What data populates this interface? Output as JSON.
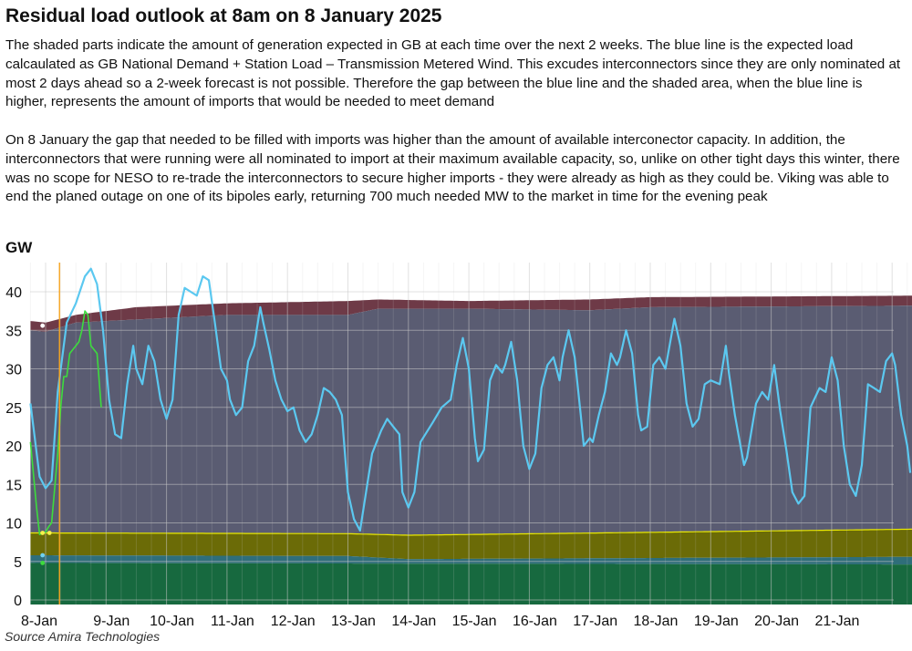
{
  "title": "Residual load outlook at 8am on 8 January 2025",
  "paragraph1": "The shaded parts indicate the amount of generation expected in GB at each time over the next 2 weeks. The blue line is the expected load calcaulated as GB National Demand + Station Load – Transmission Metered Wind. This excudes interconnectors since they are only nominated at most 2 days ahead so a 2-week forecast is not possible. Therefore the gap between the blue line and the shaded area, when the blue line is higher, represents the amount of imports that would be needed to meet demand",
  "paragraph2": "On 8 January the gap that needed to be filled with imports was higher than the amount of available interconector capacity. In addition, the interconnectors that were running were all nominated to import at their maximum available capacity, so, unlike on other tight days this winter, there was no scope for NESO to re-trade the interconnectors to secure higher imports - they were already as high as they could be. Viking was able to end the planed outage on one of its bipoles early, returning 700 much needed MW to the market in time for the evening peak",
  "source": "Source Amira Technologies",
  "colors": {
    "blue_line": "#5bc8f0",
    "green_line": "#3ddc3d",
    "band_green": "#17693f",
    "band_teal": "#2f6e7a",
    "band_olive": "#6b6b07",
    "band_olive_edge": "#e8e800",
    "band_grey": "#5a5c72",
    "band_maroon": "#6e3a47",
    "orange_marker": "#f5a623"
  },
  "chart_data": {
    "type": "area",
    "ylabel": "GW",
    "ylim": [
      0,
      42
    ],
    "y_ticks": [
      "0",
      "5",
      "10",
      "15",
      "20",
      "25",
      "30",
      "35",
      "40"
    ],
    "x_ticks": [
      "8-Jan",
      "9-Jan",
      "10-Jan",
      "11-Jan",
      "12-Jan",
      "13-Jan",
      "14-Jan",
      "15-Jan",
      "16-Jan",
      "17-Jan",
      "18-Jan",
      "19-Jan",
      "20-Jan",
      "21-Jan"
    ],
    "x_range_days": [
      -0.25,
      14.5
    ],
    "grid": true,
    "stacked_bands_top_gw": {
      "green": [
        [
          -0.25,
          4.8
        ],
        [
          14.5,
          4.6
        ]
      ],
      "teal": [
        [
          -0.25,
          5.8
        ],
        [
          5.0,
          5.7
        ],
        [
          6.0,
          5.3
        ],
        [
          14.5,
          5.6
        ]
      ],
      "olive": [
        [
          -0.25,
          8.7
        ],
        [
          5.0,
          8.6
        ],
        [
          6.0,
          8.4
        ],
        [
          14.5,
          9.2
        ]
      ],
      "grey": [
        [
          -0.25,
          35.0
        ],
        [
          0.0,
          34.8
        ],
        [
          0.5,
          36.0
        ],
        [
          3.0,
          37.0
        ],
        [
          5.0,
          37.0
        ],
        [
          5.5,
          37.8
        ],
        [
          7.0,
          37.8
        ],
        [
          9.0,
          37.6
        ],
        [
          10.0,
          38.0
        ],
        [
          14.5,
          38.2
        ]
      ],
      "maroon": [
        [
          -0.25,
          36.2
        ],
        [
          0.0,
          36.0
        ],
        [
          0.5,
          37.0
        ],
        [
          1.5,
          38.0
        ],
        [
          3.0,
          38.5
        ],
        [
          5.0,
          38.8
        ],
        [
          5.5,
          39.0
        ],
        [
          7.0,
          38.8
        ],
        [
          9.0,
          39.0
        ],
        [
          10.0,
          39.3
        ],
        [
          14.5,
          39.5
        ]
      ]
    },
    "series": [
      {
        "name": "",
        "color": "blue",
        "points": [
          [
            -0.25,
            25.5
          ],
          [
            -0.1,
            16.0
          ],
          [
            0.0,
            14.5
          ],
          [
            0.1,
            15.5
          ],
          [
            0.2,
            27.0
          ],
          [
            0.35,
            36.0
          ],
          [
            0.5,
            38.5
          ],
          [
            0.65,
            42.0
          ],
          [
            0.75,
            43.0
          ],
          [
            0.85,
            41.0
          ],
          [
            0.95,
            35.0
          ],
          [
            1.05,
            26.0
          ],
          [
            1.15,
            21.5
          ],
          [
            1.25,
            21.0
          ],
          [
            1.35,
            28.0
          ],
          [
            1.45,
            33.0
          ],
          [
            1.5,
            30.0
          ],
          [
            1.6,
            28.0
          ],
          [
            1.7,
            33.0
          ],
          [
            1.8,
            31.0
          ],
          [
            1.9,
            26.0
          ],
          [
            2.0,
            23.5
          ],
          [
            2.1,
            26.0
          ],
          [
            2.2,
            37.0
          ],
          [
            2.3,
            40.5
          ],
          [
            2.4,
            40.0
          ],
          [
            2.5,
            39.5
          ],
          [
            2.6,
            42.0
          ],
          [
            2.7,
            41.5
          ],
          [
            2.8,
            36.0
          ],
          [
            2.9,
            30.0
          ],
          [
            3.0,
            28.5
          ],
          [
            3.05,
            26.0
          ],
          [
            3.15,
            24.0
          ],
          [
            3.25,
            25.0
          ],
          [
            3.35,
            31.0
          ],
          [
            3.45,
            33.0
          ],
          [
            3.55,
            38.0
          ],
          [
            3.6,
            36.0
          ],
          [
            3.7,
            32.5
          ],
          [
            3.8,
            28.5
          ],
          [
            3.9,
            26.0
          ],
          [
            4.0,
            24.5
          ],
          [
            4.1,
            25.0
          ],
          [
            4.2,
            22.0
          ],
          [
            4.3,
            20.5
          ],
          [
            4.4,
            21.5
          ],
          [
            4.5,
            24.0
          ],
          [
            4.6,
            27.5
          ],
          [
            4.7,
            27.0
          ],
          [
            4.8,
            26.0
          ],
          [
            4.9,
            24.0
          ],
          [
            5.0,
            14.0
          ],
          [
            5.1,
            10.5
          ],
          [
            5.2,
            9.0
          ],
          [
            5.3,
            14.0
          ],
          [
            5.4,
            19.0
          ],
          [
            5.55,
            22.0
          ],
          [
            5.65,
            23.5
          ],
          [
            5.75,
            22.5
          ],
          [
            5.85,
            21.5
          ],
          [
            5.9,
            14.0
          ],
          [
            6.0,
            12.0
          ],
          [
            6.1,
            14.0
          ],
          [
            6.2,
            20.5
          ],
          [
            6.4,
            23.0
          ],
          [
            6.55,
            25.0
          ],
          [
            6.7,
            26.0
          ],
          [
            6.8,
            30.5
          ],
          [
            6.9,
            34.0
          ],
          [
            7.0,
            30.0
          ],
          [
            7.1,
            21.0
          ],
          [
            7.15,
            18.0
          ],
          [
            7.25,
            19.5
          ],
          [
            7.35,
            28.5
          ],
          [
            7.45,
            30.5
          ],
          [
            7.55,
            29.5
          ],
          [
            7.6,
            30.5
          ],
          [
            7.7,
            33.5
          ],
          [
            7.8,
            28.5
          ],
          [
            7.9,
            20.0
          ],
          [
            8.0,
            17.0
          ],
          [
            8.1,
            19.0
          ],
          [
            8.2,
            27.5
          ],
          [
            8.3,
            30.5
          ],
          [
            8.4,
            31.5
          ],
          [
            8.5,
            28.5
          ],
          [
            8.55,
            31.5
          ],
          [
            8.65,
            35.0
          ],
          [
            8.75,
            31.5
          ],
          [
            8.85,
            24.0
          ],
          [
            8.9,
            20.0
          ],
          [
            9.0,
            21.0
          ],
          [
            9.05,
            20.5
          ],
          [
            9.15,
            24.0
          ],
          [
            9.25,
            27.0
          ],
          [
            9.35,
            32.0
          ],
          [
            9.45,
            30.5
          ],
          [
            9.5,
            31.5
          ],
          [
            9.6,
            35.0
          ],
          [
            9.7,
            32.0
          ],
          [
            9.8,
            24.0
          ],
          [
            9.85,
            22.0
          ],
          [
            9.95,
            22.5
          ],
          [
            10.05,
            30.5
          ],
          [
            10.15,
            31.5
          ],
          [
            10.25,
            30.0
          ],
          [
            10.4,
            36.5
          ],
          [
            10.5,
            33.0
          ],
          [
            10.6,
            25.5
          ],
          [
            10.7,
            22.5
          ],
          [
            10.8,
            23.5
          ],
          [
            10.9,
            28.0
          ],
          [
            11.0,
            28.5
          ],
          [
            11.15,
            28.0
          ],
          [
            11.25,
            33.0
          ],
          [
            11.3,
            29.5
          ],
          [
            11.4,
            24.0
          ],
          [
            11.55,
            17.5
          ],
          [
            11.6,
            18.5
          ],
          [
            11.75,
            25.5
          ],
          [
            11.85,
            27.0
          ],
          [
            11.95,
            26.0
          ],
          [
            12.05,
            30.5
          ],
          [
            12.15,
            24.5
          ],
          [
            12.25,
            19.5
          ],
          [
            12.35,
            14.0
          ],
          [
            12.45,
            12.5
          ],
          [
            12.55,
            13.5
          ],
          [
            12.65,
            25.0
          ],
          [
            12.8,
            27.5
          ],
          [
            12.9,
            27.0
          ],
          [
            13.0,
            31.5
          ],
          [
            13.1,
            28.5
          ],
          [
            13.2,
            20.0
          ],
          [
            13.3,
            15.0
          ],
          [
            13.4,
            13.5
          ],
          [
            13.5,
            17.5
          ],
          [
            13.6,
            28.0
          ],
          [
            13.7,
            27.5
          ],
          [
            13.8,
            27.0
          ],
          [
            13.9,
            31.0
          ],
          [
            14.0,
            32.0
          ],
          [
            14.05,
            30.5
          ],
          [
            14.15,
            24.0
          ],
          [
            14.25,
            20.0
          ],
          [
            14.3,
            16.5
          ]
        ]
      },
      {
        "name": "",
        "color": "green",
        "points": [
          [
            -0.25,
            20.5
          ],
          [
            -0.15,
            12.0
          ],
          [
            -0.1,
            8.5
          ],
          [
            0.0,
            8.8
          ],
          [
            0.05,
            9.5
          ],
          [
            0.1,
            10.0
          ],
          [
            0.2,
            19.0
          ],
          [
            0.25,
            25.0
          ],
          [
            0.3,
            29.0
          ],
          [
            0.35,
            29.0
          ],
          [
            0.4,
            32.0
          ],
          [
            0.5,
            33.0
          ],
          [
            0.55,
            33.5
          ],
          [
            0.6,
            35.0
          ],
          [
            0.65,
            37.5
          ],
          [
            0.7,
            37.0
          ],
          [
            0.75,
            33.0
          ],
          [
            0.85,
            32.0
          ],
          [
            0.92,
            25.0
          ]
        ]
      }
    ],
    "markers": {
      "current_time_day": 0.23,
      "dot_day": -0.05,
      "dot_values": {
        "maroon": 35.6,
        "olive": 8.7,
        "teal": 5.8,
        "green": 4.8
      }
    }
  }
}
